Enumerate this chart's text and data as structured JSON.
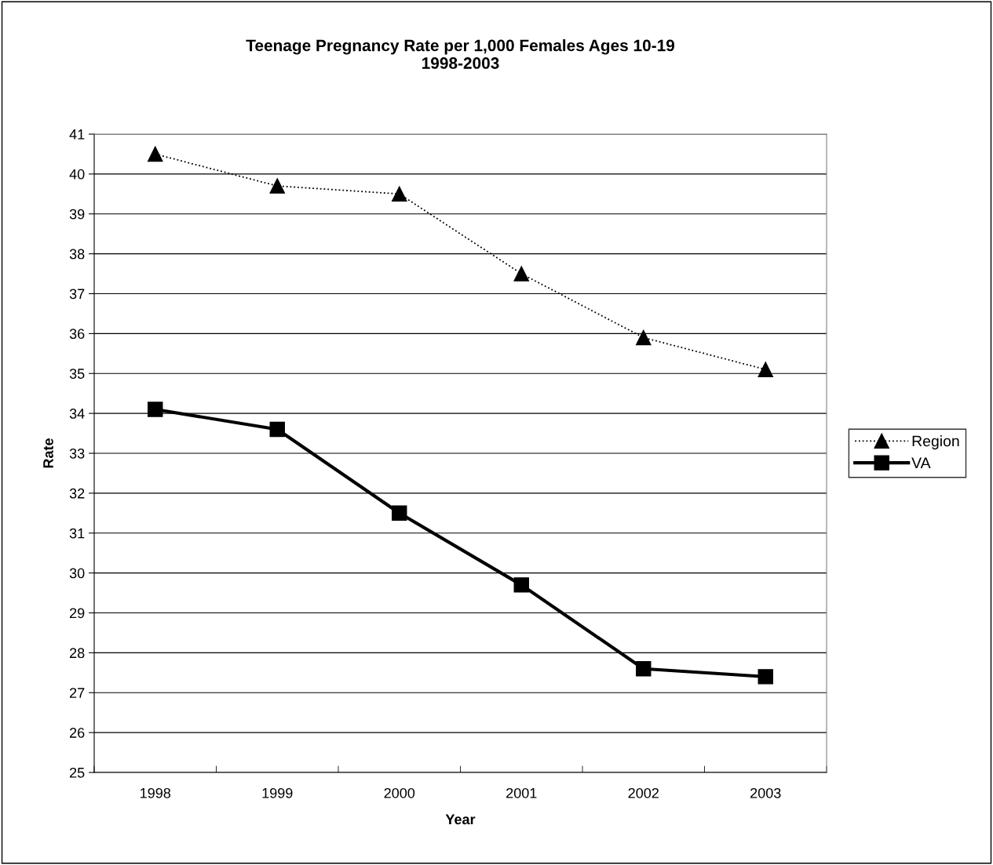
{
  "chart_data": {
    "type": "line",
    "title": "Teenage Pregnancy Rate per 1,000 Females Ages 10-19\n1998-2003",
    "xlabel": "Year",
    "ylabel": "Rate",
    "categories": [
      "1998",
      "1999",
      "2000",
      "2001",
      "2002",
      "2003"
    ],
    "series": [
      {
        "name": "Region",
        "color": "#000000",
        "values": [
          40.5,
          39.7,
          39.5,
          37.5,
          35.9,
          35.1
        ],
        "marker": "triangle",
        "line_style": "dotted"
      },
      {
        "name": "VA",
        "color": "#000000",
        "values": [
          34.1,
          33.6,
          31.5,
          29.7,
          27.6,
          27.4
        ],
        "marker": "square",
        "line_style": "solid"
      }
    ],
    "ylim": [
      25,
      41
    ],
    "yticks": [
      25,
      26,
      27,
      28,
      29,
      30,
      31,
      32,
      33,
      34,
      35,
      36,
      37,
      38,
      39,
      40,
      41
    ],
    "grid": "y",
    "legend": "right"
  }
}
